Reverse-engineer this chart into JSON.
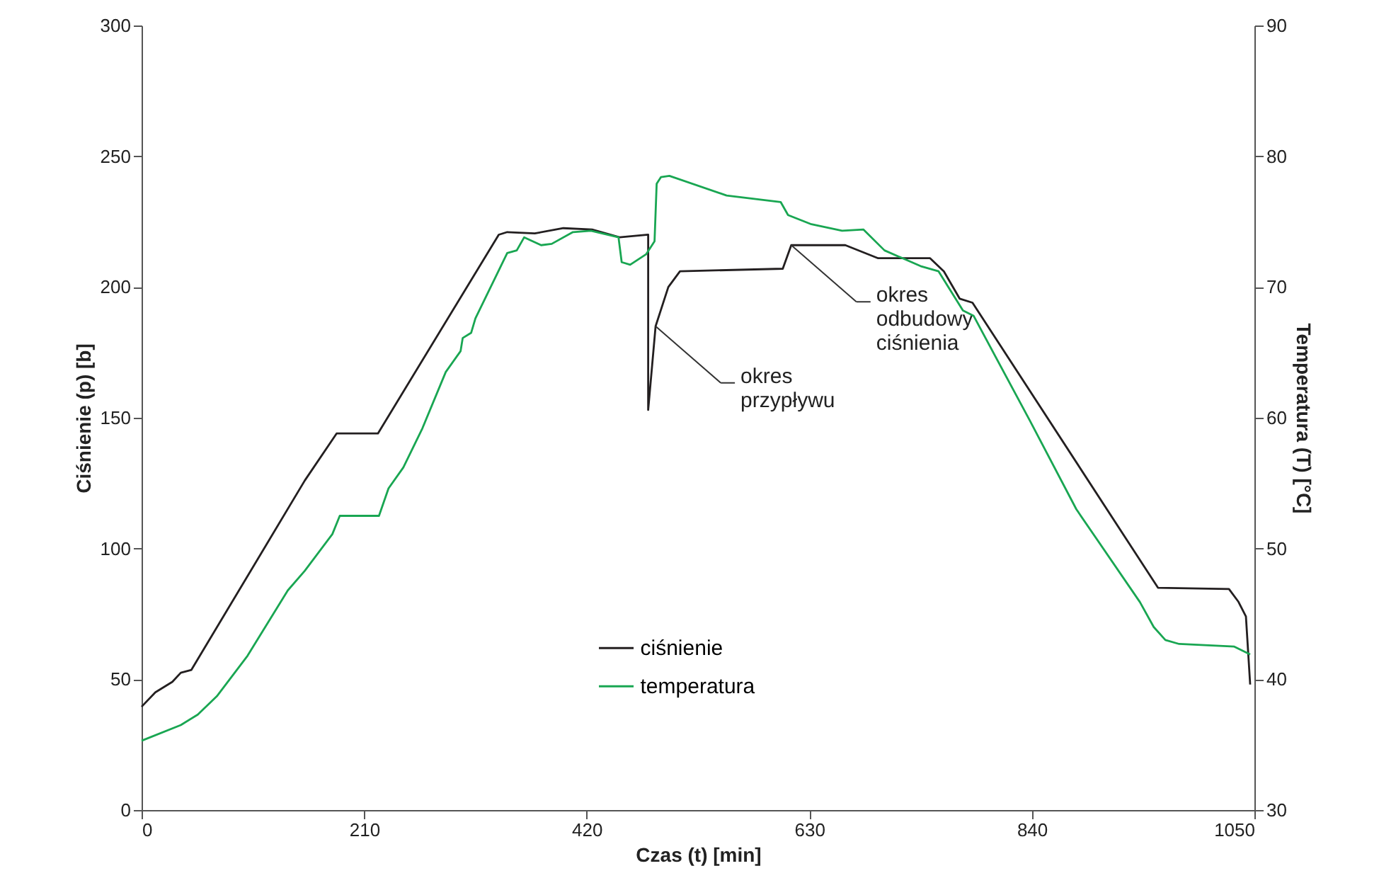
{
  "chart_data": {
    "type": "line",
    "xlabel": "Czas (t) [min]",
    "ylabel": "Ciśnienie (p) [b]",
    "y2label": "Temperatura (T) [°C]",
    "xlim": [
      0,
      1050
    ],
    "xticks": [
      0,
      210,
      420,
      630,
      840,
      1050
    ],
    "ylim": [
      0,
      300
    ],
    "yticks": [
      0,
      50,
      100,
      150,
      200,
      250,
      300
    ],
    "y2lim": [
      30,
      90
    ],
    "y2ticks": [
      30,
      40,
      50,
      60,
      70,
      80,
      90
    ],
    "grid": false,
    "legend": "bottom",
    "marker": "none",
    "line_style": "solid",
    "series": [
      {
        "name": "ciśnienie",
        "color": "#231f20",
        "x": [
          0,
          13,
          29,
          37,
          47,
          154,
          184,
          223,
          337,
          345,
          371,
          398,
          425,
          451,
          478,
          478,
          485,
          497,
          508,
          605,
          613,
          664,
          695,
          744,
          757,
          772,
          784,
          959,
          1026,
          1035,
          1042,
          1046
        ],
        "values": [
          39.5,
          45,
          49,
          52.5,
          53.6,
          126,
          144,
          144,
          220,
          221,
          220.5,
          222.5,
          222,
          219,
          220,
          153,
          185,
          200,
          206,
          207,
          216,
          216,
          211,
          211,
          206,
          195.5,
          194,
          85,
          84.5,
          79.6,
          74,
          48
        ]
      },
      {
        "name": "temperatura",
        "color": "#19a652",
        "axis": "y2",
        "x": [
          0,
          37,
          53,
          71,
          100,
          138,
          154,
          180,
          187,
          224,
          233,
          247,
          265,
          287,
          301,
          303,
          311,
          315,
          345,
          354,
          361,
          377,
          387,
          407,
          424,
          450,
          453,
          461,
          476,
          484,
          486,
          490,
          498,
          552,
          603,
          610,
          632,
          661,
          681,
          701,
          735,
          752,
          775,
          785,
          838,
          882,
          942,
          955,
          966,
          979,
          1031,
          1046
        ],
        "values": [
          35.3,
          36.5,
          37.3,
          38.7,
          41.8,
          46.8,
          48.3,
          51.1,
          52.5,
          52.5,
          54.6,
          56.2,
          59.2,
          63.5,
          65.1,
          66.1,
          66.5,
          67.6,
          72.6,
          72.8,
          73.8,
          73.2,
          73.3,
          74.2,
          74.3,
          73.8,
          71.9,
          71.7,
          72.5,
          73.5,
          77.9,
          78.4,
          78.5,
          77,
          76.5,
          75.5,
          74.8,
          74.3,
          74.4,
          72.8,
          71.6,
          71.2,
          68.2,
          67.8,
          59.8,
          53,
          45.9,
          44,
          43,
          42.7,
          42.5,
          41.9
        ]
      }
    ],
    "annotations": [
      {
        "text": "okres\nprzypływu",
        "x": 485,
        "y": 185
      },
      {
        "text": "okres\nodbudowy\nciśnienia",
        "x": 613,
        "y": 216
      }
    ]
  }
}
